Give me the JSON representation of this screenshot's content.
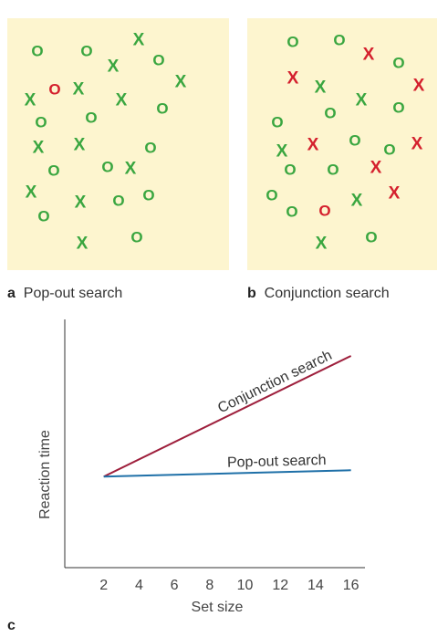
{
  "colors": {
    "green": "#3aa640",
    "red": "#d4202d",
    "panel_bg": "#fdf5cf",
    "conjunction_line": "#9e1f3c",
    "popout_line": "#1f70a8",
    "axis": "#333333"
  },
  "panel_a": {
    "letter": "a",
    "caption": "Pop-out search",
    "items": [
      {
        "c": "o",
        "k": "green"
      },
      {
        "c": "o",
        "k": "green"
      },
      {
        "c": "x",
        "k": "green"
      },
      {
        "c": "x",
        "k": "green"
      },
      {
        "c": "o",
        "k": "green"
      },
      {
        "c": "o",
        "k": "red"
      },
      {
        "c": "x",
        "k": "green"
      },
      {
        "c": "x",
        "k": "green"
      },
      {
        "c": "x",
        "k": "green"
      },
      {
        "c": "x",
        "k": "green"
      },
      {
        "c": "o",
        "k": "green"
      },
      {
        "c": "o",
        "k": "green"
      },
      {
        "c": "o",
        "k": "green"
      },
      {
        "c": "x",
        "k": "green"
      },
      {
        "c": "x",
        "k": "green"
      },
      {
        "c": "o",
        "k": "green"
      },
      {
        "c": "o",
        "k": "green"
      },
      {
        "c": "x",
        "k": "green"
      },
      {
        "c": "o",
        "k": "green"
      },
      {
        "c": "x",
        "k": "green"
      },
      {
        "c": "o",
        "k": "green"
      },
      {
        "c": "o",
        "k": "green"
      },
      {
        "c": "x",
        "k": "green"
      },
      {
        "c": "o",
        "k": "green"
      },
      {
        "c": "o",
        "k": "green"
      },
      {
        "c": "x",
        "k": "green"
      },
      {
        "c": "o",
        "k": "green"
      }
    ]
  },
  "panel_b": {
    "letter": "b",
    "caption": "Conjunction search",
    "items": [
      {
        "c": "o",
        "k": "green"
      },
      {
        "c": "o",
        "k": "green"
      },
      {
        "c": "x",
        "k": "red"
      },
      {
        "c": "o",
        "k": "green"
      },
      {
        "c": "x",
        "k": "red"
      },
      {
        "c": "x",
        "k": "green"
      },
      {
        "c": "x",
        "k": "red"
      },
      {
        "c": "o",
        "k": "green"
      },
      {
        "c": "x",
        "k": "green"
      },
      {
        "c": "o",
        "k": "green"
      },
      {
        "c": "o",
        "k": "green"
      },
      {
        "c": "o",
        "k": "green"
      },
      {
        "c": "x",
        "k": "red"
      },
      {
        "c": "x",
        "k": "green"
      },
      {
        "c": "o",
        "k": "green"
      },
      {
        "c": "o",
        "k": "green"
      },
      {
        "c": "x",
        "k": "red"
      },
      {
        "c": "x",
        "k": "red"
      },
      {
        "c": "o",
        "k": "green"
      },
      {
        "c": "o",
        "k": "green"
      },
      {
        "c": "x",
        "k": "red"
      },
      {
        "c": "o",
        "k": "green"
      },
      {
        "c": "o",
        "k": "red"
      },
      {
        "c": "x",
        "k": "green"
      },
      {
        "c": "o",
        "k": "green"
      },
      {
        "c": "x",
        "k": "green"
      },
      {
        "c": "o",
        "k": "green"
      }
    ]
  },
  "panel_c": {
    "letter": "c"
  },
  "chart_data": {
    "type": "line",
    "xlabel": "Set size",
    "ylabel": "Reaction time",
    "x_ticks": [
      2,
      4,
      6,
      8,
      10,
      12,
      14,
      16
    ],
    "xlim": [
      0,
      17
    ],
    "series": [
      {
        "name": "Conjunction search",
        "color_key": "conjunction_line",
        "x": [
          2,
          16
        ],
        "y": [
          0.43,
          1.0
        ]
      },
      {
        "name": "Pop-out search",
        "color_key": "popout_line",
        "x": [
          2,
          16
        ],
        "y": [
          0.43,
          0.46
        ]
      }
    ]
  }
}
